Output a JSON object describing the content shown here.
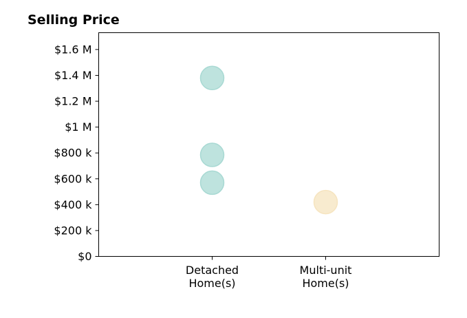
{
  "chart_data": {
    "type": "scatter",
    "title": "Selling Price",
    "xlabel": "",
    "ylabel": "",
    "categories": [
      [
        "Detached",
        "Home(s)"
      ],
      [
        "Multi-unit",
        "Home(s)"
      ]
    ],
    "ylim": [
      0,
      1730000
    ],
    "xlim": [
      -1,
      2
    ],
    "y_ticks": [
      {
        "value": 0,
        "label": "$0"
      },
      {
        "value": 200000,
        "label": "$200 k"
      },
      {
        "value": 400000,
        "label": "$400 k"
      },
      {
        "value": 600000,
        "label": "$600 k"
      },
      {
        "value": 800000,
        "label": "$800 k"
      },
      {
        "value": 1000000,
        "label": "$1 M"
      },
      {
        "value": 1200000,
        "label": "$1.2 M"
      },
      {
        "value": 1400000,
        "label": "$1.4 M"
      },
      {
        "value": 1600000,
        "label": "$1.6 M"
      }
    ],
    "points": [
      {
        "category": 0,
        "value": 1380000,
        "color": "#a8d9d3"
      },
      {
        "category": 0,
        "value": 785000,
        "color": "#a8d9d3"
      },
      {
        "category": 0,
        "value": 570000,
        "color": "#a8d9d3"
      },
      {
        "category": 1,
        "value": 420000,
        "color": "#f6e4bf"
      }
    ],
    "grid": false,
    "legend": "none"
  }
}
